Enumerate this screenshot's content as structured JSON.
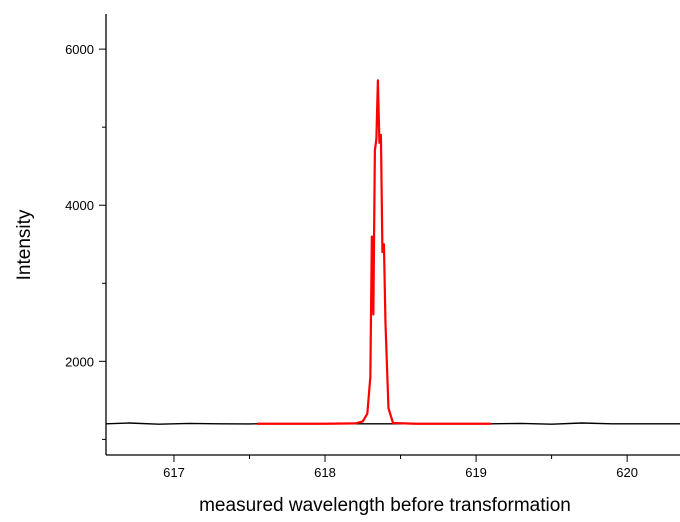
{
  "chart_data": {
    "type": "line",
    "title": "",
    "xlabel": "measured wavelength before transformation",
    "ylabel": "Intensity",
    "xlim": [
      616.55,
      620.35
    ],
    "ylim": [
      800,
      6450
    ],
    "xticks": [
      617,
      618,
      619,
      620
    ],
    "xtick_labels": [
      "617",
      "618",
      "619",
      "620"
    ],
    "yticks": [
      2000,
      4000,
      6000
    ],
    "ytick_labels": [
      "2000",
      "4000",
      "6000"
    ],
    "grid": false,
    "legend": "none",
    "series": [
      {
        "color": "#000000",
        "x": [
          616.55,
          616.7,
          616.9,
          617.1,
          617.3,
          617.5,
          617.55,
          619.1,
          619.3,
          619.5,
          619.7,
          619.9,
          620.1,
          620.35
        ],
        "values": [
          1200,
          1210,
          1195,
          1205,
          1200,
          1198,
          1200,
          1200,
          1205,
          1195,
          1210,
          1200,
          1200,
          1200
        ]
      },
      {
        "color": "#ff0000",
        "x": [
          617.55,
          617.8,
          618.0,
          618.2,
          618.25,
          618.28,
          618.3,
          618.31,
          618.32,
          618.33,
          618.34,
          618.35,
          618.36,
          618.37,
          618.38,
          618.39,
          618.4,
          618.42,
          618.45,
          618.6,
          618.8,
          619.1
        ],
        "values": [
          1200,
          1200,
          1200,
          1205,
          1230,
          1330,
          1800,
          3600,
          2600,
          4700,
          4850,
          5600,
          4800,
          4900,
          3400,
          3500,
          2500,
          1400,
          1210,
          1200,
          1200,
          1200
        ]
      }
    ]
  }
}
